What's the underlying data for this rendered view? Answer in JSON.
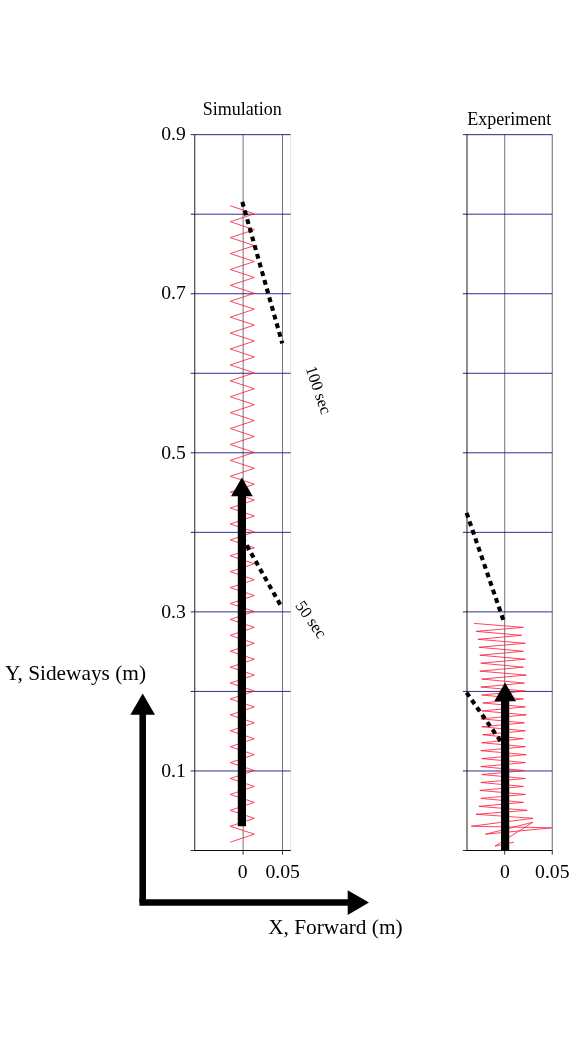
{
  "chart_data": [
    {
      "type": "line",
      "title": "Simulation",
      "xlabel": "X, Forward (m)",
      "ylabel": "Y, Sideways (m)",
      "xlim": [
        -0.06,
        0.06
      ],
      "xticks": [
        0,
        0.05
      ],
      "ylim": [
        0,
        0.9
      ],
      "yticks": [
        {
          "value": 0,
          "label": null
        },
        0.1,
        {
          "value": 0.2,
          "label": null
        },
        0.3,
        {
          "value": 0.4,
          "label": null
        },
        0.5,
        {
          "value": 0.6,
          "label": null
        },
        0.7,
        {
          "value": 0.8,
          "label": null
        },
        0.9
      ],
      "grid": true,
      "line_style": "solid",
      "annotations": [
        "100 sec",
        "50 sec"
      ],
      "series": [
        {
          "color": "#ff1a3c",
          "x": [
            -0.015,
            0.015,
            -0.015,
            0.015,
            -0.015,
            0.015,
            -0.015,
            0.015,
            -0.015,
            0.015,
            -0.015,
            0.015,
            -0.015,
            0.015,
            -0.015,
            0.015,
            -0.015,
            0.015,
            -0.015,
            0.015,
            -0.015,
            0.015,
            -0.015,
            0.015,
            -0.015,
            0.015,
            -0.015,
            0.015,
            -0.015,
            0.015,
            -0.015,
            0.015,
            -0.015,
            0.015,
            -0.015,
            0.015,
            -0.015,
            0.015,
            -0.015,
            0.015,
            -0.015,
            0.015,
            -0.015,
            0.015,
            -0.015,
            0.015,
            -0.015,
            0.015,
            -0.015,
            0.015,
            -0.015,
            0.015,
            -0.015,
            0.015,
            -0.015,
            0.015,
            -0.015,
            0.015,
            -0.015,
            0.015,
            -0.015,
            0.015,
            -0.015,
            0.015,
            -0.015,
            0.015,
            -0.015,
            0.015,
            -0.015,
            0.015,
            -0.015,
            0.015,
            -0.015,
            0.015,
            -0.015,
            0.015,
            -0.015,
            0.015,
            -0.015,
            0.015,
            -0.015
          ],
          "values": [
            0.81,
            0.8,
            0.79,
            0.78,
            0.77,
            0.76,
            0.75,
            0.74,
            0.73,
            0.72,
            0.71,
            0.7,
            0.69,
            0.68,
            0.67,
            0.66,
            0.65,
            0.64,
            0.63,
            0.62,
            0.61,
            0.6,
            0.59,
            0.58,
            0.57,
            0.56,
            0.55,
            0.54,
            0.53,
            0.52,
            0.51,
            0.5,
            0.49,
            0.48,
            0.47,
            0.46,
            0.45,
            0.44,
            0.43,
            0.42,
            0.41,
            0.4,
            0.39,
            0.38,
            0.37,
            0.36,
            0.35,
            0.34,
            0.33,
            0.32,
            0.31,
            0.3,
            0.29,
            0.28,
            0.27,
            0.26,
            0.25,
            0.24,
            0.23,
            0.22,
            0.21,
            0.2,
            0.19,
            0.18,
            0.17,
            0.16,
            0.15,
            0.14,
            0.13,
            0.12,
            0.11,
            0.1,
            0.09,
            0.08,
            0.07,
            0.06,
            0.05,
            0.04,
            0.03,
            0.02,
            0.01
          ]
        },
        {
          "color": "#000000",
          "line_style": "dashed",
          "x": [
            0,
            0.05
          ],
          "values": [
            0.815,
            0.637
          ]
        },
        {
          "color": "#000000",
          "line_style": "dashed",
          "x": [
            0,
            0.05
          ],
          "values": [
            0.393,
            0.304
          ]
        }
      ]
    },
    {
      "type": "line",
      "title": "Experiment",
      "xlim": [
        -0.04,
        0.05
      ],
      "xticks": [
        0,
        0.05
      ],
      "ylim": [
        0,
        0.9
      ],
      "yticks": [
        {
          "value": 0,
          "label": null
        },
        0.1,
        {
          "value": 0.2,
          "label": null
        },
        0.3,
        {
          "value": 0.4,
          "label": null
        },
        0.5,
        {
          "value": 0.6,
          "label": null
        },
        0.7,
        {
          "value": 0.8,
          "label": null
        },
        0.9
      ],
      "grid": true,
      "tick_labels": "x",
      "line_style": "solid",
      "series": [
        {
          "color": "#ff1a3c",
          "x": [
            -0.032,
            0.02,
            -0.03,
            0.018,
            -0.028,
            0.022,
            -0.027,
            0.02,
            -0.026,
            0.022,
            -0.025,
            0.02,
            -0.026,
            0.023,
            -0.024,
            0.021,
            -0.025,
            0.022,
            -0.024,
            0.02,
            -0.023,
            0.022,
            -0.024,
            0.023,
            -0.025,
            0.021,
            -0.024,
            0.022,
            -0.023,
            0.02,
            -0.024,
            0.022,
            -0.025,
            0.023,
            -0.024,
            0.022,
            -0.025,
            0.021,
            -0.024,
            0.022,
            -0.025,
            0.02,
            -0.026,
            0.022,
            -0.025,
            0.02,
            -0.027,
            0.024,
            -0.03,
            0.03,
            -0.035,
            0.05,
            -0.02,
            0.03,
            -0.01,
            0.01
          ],
          "values": [
            0.285,
            0.28,
            0.275,
            0.27,
            0.265,
            0.26,
            0.255,
            0.25,
            0.245,
            0.24,
            0.235,
            0.23,
            0.225,
            0.22,
            0.215,
            0.21,
            0.205,
            0.2,
            0.195,
            0.19,
            0.185,
            0.18,
            0.175,
            0.17,
            0.165,
            0.16,
            0.155,
            0.15,
            0.145,
            0.14,
            0.135,
            0.13,
            0.125,
            0.12,
            0.115,
            0.11,
            0.105,
            0.1,
            0.095,
            0.09,
            0.085,
            0.08,
            0.075,
            0.07,
            0.065,
            0.06,
            0.055,
            0.05,
            0.045,
            0.04,
            0.03,
            0.028,
            0.02,
            0.035,
            0.005,
            0.01
          ]
        },
        {
          "color": "#000000",
          "line_style": "dashed",
          "x": [
            -0.04,
            0
          ],
          "values": [
            0.424,
            0.285
          ]
        },
        {
          "color": "#000000",
          "line_style": "dashed",
          "x": [
            -0.04,
            0
          ],
          "values": [
            0.198,
            0.13
          ]
        }
      ]
    }
  ]
}
